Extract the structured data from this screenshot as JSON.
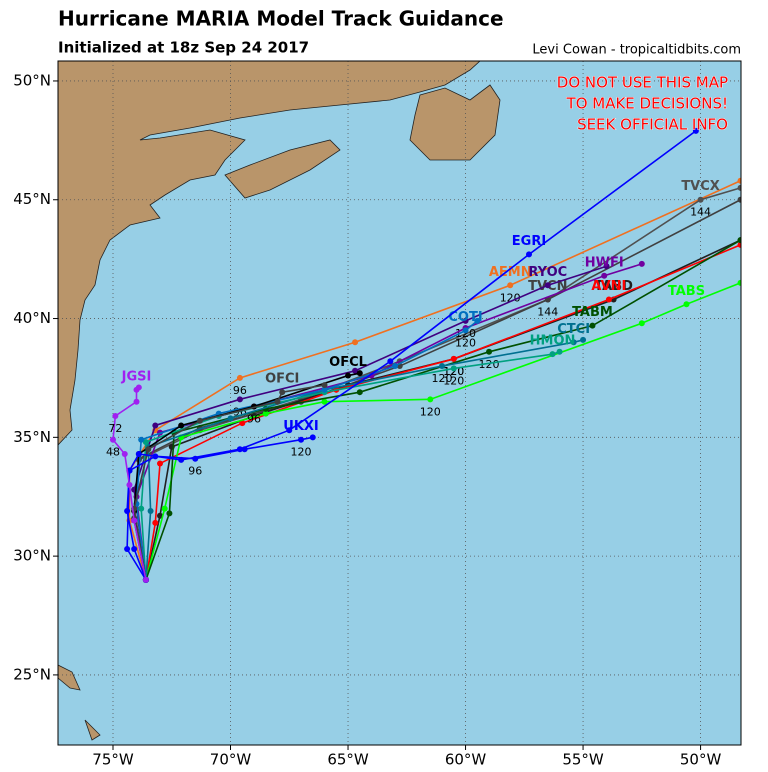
{
  "header": {
    "title": "Hurricane MARIA Model Track Guidance",
    "subtitle": "Initialized at 18z Sep 24 2017",
    "credit": "Levi Cowan - tropicaltidbits.com"
  },
  "warning": [
    "DO NOT USE THIS MAP",
    "TO MAKE DECISIONS!",
    "SEEK OFFICIAL INFO"
  ],
  "map": {
    "lon_range": [
      -77.34,
      -48.28
    ],
    "lat_range": [
      22.05,
      50.84
    ],
    "lon_ticks": [
      {
        "value": -75,
        "label": "75°W"
      },
      {
        "value": -70,
        "label": "70°W"
      },
      {
        "value": -65,
        "label": "65°W"
      },
      {
        "value": -60,
        "label": "60°W"
      },
      {
        "value": -55,
        "label": "55°W"
      },
      {
        "value": -50,
        "label": "50°W"
      }
    ],
    "lat_ticks": [
      {
        "value": 25,
        "label": "25°N"
      },
      {
        "value": 30,
        "label": "30°N"
      },
      {
        "value": 35,
        "label": "35°N"
      },
      {
        "value": 40,
        "label": "40°N"
      },
      {
        "value": 45,
        "label": "45°N"
      },
      {
        "value": 50,
        "label": "50°N"
      }
    ],
    "grid": true
  },
  "tracks": [
    {
      "name": "AEMN",
      "color": "#f07020",
      "lons": [
        -73.6,
        -74.3,
        -74.3,
        -73.2,
        -69.6,
        -64.7,
        -58.1,
        -48.3
      ],
      "lats": [
        29.0,
        31.5,
        33.6,
        35.3,
        37.5,
        39.0,
        41.4,
        45.8
      ],
      "hours": [
        null,
        null,
        null,
        null,
        96,
        null,
        120,
        null
      ]
    },
    {
      "name": "TVCX",
      "color": "#505050",
      "lons": [
        -73.6,
        -74.1,
        -73.9,
        -71.3,
        -67.0,
        -62.8,
        -56.5,
        -50.0,
        -48.3
      ],
      "lats": [
        29.0,
        31.5,
        34.05,
        35.3,
        36.6,
        38.2,
        40.8,
        45.0,
        45.5
      ],
      "hours": [
        null,
        null,
        null,
        null,
        null,
        null,
        null,
        144,
        null
      ]
    },
    {
      "name": "TVCN",
      "color": "#404040",
      "lons": [
        -73.6,
        -74.1,
        -73.9,
        -71.3,
        -67.0,
        -62.8,
        -56.5,
        -48.3
      ],
      "lats": [
        29.0,
        31.6,
        34.1,
        35.4,
        36.5,
        38.0,
        40.8,
        45.0
      ],
      "hours": [
        null,
        null,
        null,
        null,
        null,
        null,
        144,
        null
      ]
    },
    {
      "name": "RYOC",
      "color": "#400080",
      "lons": [
        -73.6,
        -74.1,
        -73.2,
        -69.6,
        -64.7,
        -60.0,
        -56.5,
        -54.0
      ],
      "lats": [
        29.0,
        32.8,
        35.5,
        36.6,
        37.8,
        39.9,
        41.4,
        42.2
      ],
      "hours": [
        null,
        null,
        null,
        96,
        null,
        120,
        null,
        null
      ]
    },
    {
      "name": "HWFI",
      "color": "#7000a0",
      "lons": [
        -73.6,
        -74.0,
        -73.0,
        -69.0,
        -64.0,
        -60.0,
        -54.1,
        -52.5
      ],
      "lats": [
        29.0,
        32.5,
        35.2,
        36.3,
        37.6,
        39.6,
        41.8,
        42.3
      ],
      "hours": [
        null,
        null,
        null,
        null,
        null,
        null,
        null,
        null
      ]
    },
    {
      "name": "TABD",
      "color": "#202020",
      "lons": [
        -73.6,
        -73.0,
        -72.5,
        -69.0,
        -65.0,
        -60.5,
        -53.7,
        -48.3
      ],
      "lats": [
        29.0,
        31.7,
        34.6,
        35.9,
        37.2,
        38.3,
        40.8,
        43.3
      ],
      "hours": [
        null,
        null,
        null,
        null,
        null,
        120,
        null,
        null
      ]
    },
    {
      "name": "AVNI",
      "color": "#ff0000",
      "lons": [
        -73.6,
        -73.2,
        -73.0,
        -69.5,
        -65.5,
        -60.5,
        -53.9,
        -48.3
      ],
      "lats": [
        29.0,
        31.4,
        33.9,
        35.6,
        37.0,
        38.3,
        40.8,
        43.1
      ],
      "hours": [
        null,
        null,
        null,
        null,
        null,
        120,
        null,
        null
      ]
    },
    {
      "name": "TABS",
      "color": "#00ff00",
      "lons": [
        -73.6,
        -72.8,
        -72.1,
        -68.5,
        -66.0,
        -61.5,
        -52.5,
        -50.6,
        -48.3
      ],
      "lats": [
        29.0,
        32.0,
        35.0,
        36.0,
        36.5,
        36.6,
        39.8,
        40.6,
        41.5
      ],
      "hours": [
        null,
        null,
        null,
        null,
        null,
        120,
        null,
        null,
        null
      ]
    },
    {
      "name": "TABM",
      "color": "#005000",
      "lons": [
        -73.6,
        -72.6,
        -72.4,
        -68.5,
        -64.5,
        -59.0,
        -54.6,
        -48.3
      ],
      "lats": [
        29.0,
        31.8,
        35.2,
        36.2,
        36.9,
        38.6,
        39.7,
        43.3
      ],
      "hours": [
        null,
        null,
        null,
        null,
        null,
        120,
        null,
        null
      ]
    },
    {
      "name": "CTCI",
      "color": "#007090",
      "lons": [
        -73.6,
        -73.4,
        -73.5,
        -70.0,
        -66.0,
        -61.0,
        -55.4,
        -55.0
      ],
      "lats": [
        29.0,
        31.9,
        34.6,
        35.8,
        37.0,
        38.0,
        39.0,
        39.1
      ],
      "hours": [
        null,
        null,
        null,
        null,
        null,
        120,
        null,
        null
      ]
    },
    {
      "name": "HMON",
      "color": "#00a080",
      "lons": [
        -73.6,
        -73.8,
        -73.6,
        -70.5,
        -66.0,
        -60.5,
        -56.3,
        -56.0
      ],
      "lats": [
        29.0,
        32.0,
        34.8,
        35.9,
        36.9,
        37.9,
        38.5,
        38.6
      ],
      "hours": [
        null,
        null,
        null,
        null,
        null,
        120,
        null,
        null
      ]
    },
    {
      "name": "COTI",
      "color": "#0070c0",
      "lons": [
        -73.6,
        -74.0,
        -73.8,
        -70.5,
        -66.0,
        -63.0,
        -60.0,
        -59.5
      ],
      "lats": [
        29.0,
        32.2,
        34.9,
        36.0,
        37.0,
        38.0,
        39.5,
        39.9
      ],
      "hours": [
        null,
        null,
        null,
        null,
        null,
        null,
        120,
        null
      ]
    },
    {
      "name": "OFCL",
      "color": "#000000",
      "lons": [
        -73.6,
        -74.1,
        -73.9,
        -72.1,
        -69.0,
        -65.0,
        -64.5
      ],
      "lats": [
        29.0,
        31.9,
        34.3,
        35.5,
        36.3,
        37.6,
        37.7
      ],
      "hours": [
        null,
        null,
        null,
        null,
        96,
        null,
        null
      ]
    },
    {
      "name": "OFCI",
      "color": "#404040",
      "lons": [
        -73.6,
        -74.1,
        -73.5,
        -71.3,
        -68.0,
        -67.8,
        -66.0
      ],
      "lats": [
        29.0,
        32.0,
        34.5,
        35.7,
        36.5,
        36.9,
        37.2
      ],
      "hours": [
        null,
        null,
        null,
        null,
        null,
        null,
        null
      ]
    },
    {
      "name": "UKXI",
      "color": "#0000ff",
      "lons": [
        -73.6,
        -74.4,
        -74.3,
        -73.2,
        -71.5,
        -69.4,
        -67.0,
        -66.5
      ],
      "lats": [
        29.0,
        30.3,
        33.6,
        34.2,
        34.1,
        34.5,
        34.9,
        35.0
      ],
      "hours": [
        null,
        null,
        null,
        null,
        96,
        null,
        120,
        null
      ]
    },
    {
      "name": "EGRI",
      "color": "#0000ff",
      "lons": [
        -73.6,
        -74.1,
        -74.4,
        -74.3,
        -73.9,
        -72.1,
        -69.6,
        -67.5,
        -63.2,
        -57.3,
        -50.2
      ],
      "lats": [
        29.0,
        30.3,
        31.9,
        33.6,
        34.3,
        34.05,
        34.5,
        35.3,
        38.2,
        42.7,
        47.9
      ],
      "hours": [
        null,
        null,
        null,
        null,
        null,
        null,
        null,
        null,
        null,
        null,
        null
      ]
    },
    {
      "name": "JGSI",
      "color": "#a020f0",
      "lons": [
        -73.6,
        -74.1,
        -74.3,
        -74.5,
        -75.0,
        -74.9,
        -74.0,
        -74.0,
        -73.9
      ],
      "lats": [
        29.0,
        31.5,
        33.0,
        34.3,
        34.9,
        35.9,
        36.5,
        37.0,
        37.1
      ],
      "hours": [
        null,
        null,
        null,
        null,
        48,
        72,
        null,
        null,
        null
      ]
    }
  ]
}
